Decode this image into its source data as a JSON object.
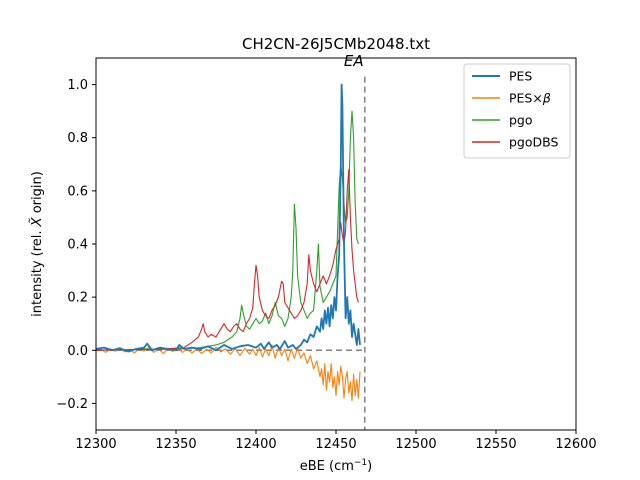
{
  "chart_data": {
    "type": "line",
    "title": "CH2CN-26J5CMb2048.txt",
    "xlabel": "eBE (cm$^{-1}$)",
    "xlabel_main": "eBE (cm",
    "xlabel_sup": "−1",
    "xlabel_close": ")",
    "ylabel_main": "intensity (rel. ",
    "ylabel_sym": "X̃",
    "ylabel_close": " origin)",
    "xlim": [
      12300,
      12600
    ],
    "ylim": [
      -0.3,
      1.1
    ],
    "xticks": [
      12300,
      12350,
      12400,
      12450,
      12500,
      12550,
      12600
    ],
    "xtick_labels": [
      "12300",
      "12350",
      "12400",
      "12450",
      "12500",
      "12550",
      "12600"
    ],
    "yticks": [
      -0.2,
      0.0,
      0.2,
      0.4,
      0.6,
      0.8,
      1.0
    ],
    "ytick_labels": [
      "−0.2",
      "0.0",
      "0.2",
      "0.4",
      "0.6",
      "0.8",
      "1.0"
    ],
    "grid": false,
    "legend_position": "top-right",
    "annotation": {
      "text": "EA",
      "x": 12468
    },
    "reference_lines": [
      {
        "type": "vertical",
        "x": 12468,
        "style": "dashed",
        "color": "#808080"
      },
      {
        "type": "horizontal",
        "y": 0.0,
        "x_range": [
          12300,
          12468
        ],
        "style": "dashed",
        "color": "#808080"
      }
    ],
    "series": [
      {
        "name": "PES",
        "color": "#1f77b4",
        "width": 1.8,
        "points": [
          [
            12300,
            0.005
          ],
          [
            12305,
            0.01
          ],
          [
            12310,
            0.0
          ],
          [
            12315,
            0.008
          ],
          [
            12320,
            -0.005
          ],
          [
            12325,
            0.005
          ],
          [
            12330,
            0.01
          ],
          [
            12332,
            0.025
          ],
          [
            12335,
            0.0
          ],
          [
            12340,
            0.01
          ],
          [
            12345,
            0.005
          ],
          [
            12350,
            0.0
          ],
          [
            12352,
            0.02
          ],
          [
            12355,
            0.005
          ],
          [
            12360,
            0.01
          ],
          [
            12365,
            0.005
          ],
          [
            12370,
            0.015
          ],
          [
            12375,
            0.0
          ],
          [
            12380,
            0.02
          ],
          [
            12385,
            0.005
          ],
          [
            12390,
            0.015
          ],
          [
            12395,
            0.02
          ],
          [
            12400,
            0.01
          ],
          [
            12403,
            0.025
          ],
          [
            12405,
            0.005
          ],
          [
            12408,
            0.03
          ],
          [
            12410,
            0.01
          ],
          [
            12413,
            0.02
          ],
          [
            12415,
            0.005
          ],
          [
            12418,
            0.035
          ],
          [
            12420,
            0.01
          ],
          [
            12423,
            0.02
          ],
          [
            12425,
            0.005
          ],
          [
            12428,
            0.02
          ],
          [
            12430,
            0.04
          ],
          [
            12432,
            0.03
          ],
          [
            12434,
            0.06
          ],
          [
            12436,
            0.05
          ],
          [
            12438,
            0.09
          ],
          [
            12440,
            0.07
          ],
          [
            12441,
            0.12
          ],
          [
            12442,
            0.08
          ],
          [
            12443,
            0.15
          ],
          [
            12444,
            0.1
          ],
          [
            12445,
            0.16
          ],
          [
            12446,
            0.09
          ],
          [
            12447,
            0.17
          ],
          [
            12448,
            0.12
          ],
          [
            12449,
            0.2
          ],
          [
            12450,
            0.15
          ],
          [
            12451,
            0.28
          ],
          [
            12452,
            0.36
          ],
          [
            12453,
            0.7
          ],
          [
            12453.5,
            1.0
          ],
          [
            12454,
            0.92
          ],
          [
            12455,
            0.4
          ],
          [
            12456,
            0.12
          ],
          [
            12457,
            0.2
          ],
          [
            12458,
            0.1
          ],
          [
            12459,
            0.15
          ],
          [
            12460,
            0.05
          ],
          [
            12461,
            0.1
          ],
          [
            12462,
            0.06
          ],
          [
            12463,
            0.02
          ],
          [
            12464,
            0.08
          ],
          [
            12465,
            0.02
          ]
        ]
      },
      {
        "name": "PES×β",
        "name_main": "PES×",
        "name_sym": "β",
        "color": "#ff7f0e",
        "width": 1.1,
        "points": [
          [
            12300,
            0.0
          ],
          [
            12303,
            0.005
          ],
          [
            12306,
            -0.008
          ],
          [
            12309,
            0.006
          ],
          [
            12312,
            -0.004
          ],
          [
            12315,
            0.008
          ],
          [
            12318,
            -0.006
          ],
          [
            12321,
            0.004
          ],
          [
            12324,
            -0.01
          ],
          [
            12327,
            0.006
          ],
          [
            12330,
            -0.003
          ],
          [
            12333,
            0.012
          ],
          [
            12336,
            -0.008
          ],
          [
            12339,
            0.005
          ],
          [
            12342,
            -0.012
          ],
          [
            12345,
            0.006
          ],
          [
            12348,
            -0.005
          ],
          [
            12351,
            0.01
          ],
          [
            12354,
            -0.008
          ],
          [
            12357,
            0.004
          ],
          [
            12360,
            -0.01
          ],
          [
            12363,
            0.006
          ],
          [
            12366,
            -0.012
          ],
          [
            12369,
            0.004
          ],
          [
            12372,
            -0.01
          ],
          [
            12375,
            0.012
          ],
          [
            12378,
            -0.006
          ],
          [
            12381,
            0.005
          ],
          [
            12384,
            -0.015
          ],
          [
            12387,
            0.006
          ],
          [
            12390,
            -0.02
          ],
          [
            12393,
            0.008
          ],
          [
            12396,
            -0.015
          ],
          [
            12398,
            0.005
          ],
          [
            12400,
            -0.02
          ],
          [
            12402,
            0.01
          ],
          [
            12404,
            -0.025
          ],
          [
            12406,
            0.005
          ],
          [
            12408,
            -0.02
          ],
          [
            12410,
            0.02
          ],
          [
            12412,
            -0.03
          ],
          [
            12414,
            0.01
          ],
          [
            12416,
            -0.02
          ],
          [
            12418,
            0.005
          ],
          [
            12420,
            -0.04
          ],
          [
            12422,
            0.005
          ],
          [
            12424,
            -0.03
          ],
          [
            12426,
            0.01
          ],
          [
            12428,
            -0.03
          ],
          [
            12430,
            -0.01
          ],
          [
            12432,
            -0.05
          ],
          [
            12434,
            -0.02
          ],
          [
            12436,
            -0.07
          ],
          [
            12438,
            -0.04
          ],
          [
            12440,
            -0.1
          ],
          [
            12441,
            -0.07
          ],
          [
            12442,
            -0.13
          ],
          [
            12443,
            -0.05
          ],
          [
            12444,
            -0.15
          ],
          [
            12445,
            -0.08
          ],
          [
            12446,
            -0.12
          ],
          [
            12447,
            -0.05
          ],
          [
            12448,
            -0.14
          ],
          [
            12449,
            -0.1
          ],
          [
            12450,
            -0.17
          ],
          [
            12451,
            -0.08
          ],
          [
            12452,
            -0.13
          ],
          [
            12453,
            -0.06
          ],
          [
            12454,
            -0.1
          ],
          [
            12455,
            -0.18
          ],
          [
            12456,
            -0.11
          ],
          [
            12457,
            -0.08
          ],
          [
            12458,
            -0.16
          ],
          [
            12459,
            -0.12
          ],
          [
            12460,
            -0.19
          ],
          [
            12461,
            -0.09
          ],
          [
            12462,
            -0.17
          ],
          [
            12463,
            -0.11
          ],
          [
            12464,
            -0.18
          ],
          [
            12465,
            -0.08
          ]
        ]
      },
      {
        "name": "pgo",
        "color": "#2ca02c",
        "width": 1.1,
        "points": [
          [
            12300,
            0.0
          ],
          [
            12310,
            0.003
          ],
          [
            12320,
            0.002
          ],
          [
            12330,
            0.005
          ],
          [
            12340,
            0.003
          ],
          [
            12350,
            0.005
          ],
          [
            12360,
            0.008
          ],
          [
            12365,
            0.01
          ],
          [
            12370,
            0.015
          ],
          [
            12375,
            0.02
          ],
          [
            12380,
            0.03
          ],
          [
            12385,
            0.05
          ],
          [
            12388,
            0.07
          ],
          [
            12390,
            0.12
          ],
          [
            12391,
            0.17
          ],
          [
            12392,
            0.14
          ],
          [
            12394,
            0.09
          ],
          [
            12396,
            0.08
          ],
          [
            12398,
            0.1
          ],
          [
            12400,
            0.12
          ],
          [
            12402,
            0.1
          ],
          [
            12404,
            0.11
          ],
          [
            12406,
            0.14
          ],
          [
            12408,
            0.1
          ],
          [
            12410,
            0.13
          ],
          [
            12412,
            0.18
          ],
          [
            12414,
            0.13
          ],
          [
            12416,
            0.12
          ],
          [
            12418,
            0.09
          ],
          [
            12420,
            0.12
          ],
          [
            12422,
            0.2
          ],
          [
            12423,
            0.3
          ],
          [
            12424,
            0.55
          ],
          [
            12425,
            0.46
          ],
          [
            12426,
            0.28
          ],
          [
            12428,
            0.18
          ],
          [
            12430,
            0.15
          ],
          [
            12432,
            0.12
          ],
          [
            12434,
            0.14
          ],
          [
            12436,
            0.15
          ],
          [
            12438,
            0.3
          ],
          [
            12439,
            0.4
          ],
          [
            12440,
            0.24
          ],
          [
            12442,
            0.18
          ],
          [
            12444,
            0.2
          ],
          [
            12446,
            0.22
          ],
          [
            12448,
            0.25
          ],
          [
            12450,
            0.28
          ],
          [
            12451,
            0.45
          ],
          [
            12452,
            0.62
          ],
          [
            12453,
            0.7
          ],
          [
            12454,
            0.65
          ],
          [
            12455,
            0.55
          ],
          [
            12456,
            0.48
          ],
          [
            12457,
            0.5
          ],
          [
            12458,
            0.6
          ],
          [
            12459,
            0.8
          ],
          [
            12460,
            0.9
          ],
          [
            12461,
            0.8
          ],
          [
            12462,
            0.55
          ],
          [
            12463,
            0.42
          ],
          [
            12464,
            0.4
          ]
        ]
      },
      {
        "name": "pgoDBS",
        "color": "#d62728",
        "width": 1.1,
        "points": [
          [
            12300,
            0.0
          ],
          [
            12310,
            0.002
          ],
          [
            12320,
            0.002
          ],
          [
            12330,
            0.003
          ],
          [
            12340,
            0.005
          ],
          [
            12350,
            0.008
          ],
          [
            12355,
            0.01
          ],
          [
            12360,
            0.03
          ],
          [
            12364,
            0.05
          ],
          [
            12366,
            0.08
          ],
          [
            12367,
            0.1
          ],
          [
            12368,
            0.07
          ],
          [
            12370,
            0.05
          ],
          [
            12372,
            0.06
          ],
          [
            12375,
            0.05
          ],
          [
            12378,
            0.08
          ],
          [
            12380,
            0.1
          ],
          [
            12382,
            0.08
          ],
          [
            12384,
            0.07
          ],
          [
            12386,
            0.09
          ],
          [
            12388,
            0.1
          ],
          [
            12390,
            0.08
          ],
          [
            12392,
            0.07
          ],
          [
            12394,
            0.1
          ],
          [
            12396,
            0.12
          ],
          [
            12398,
            0.16
          ],
          [
            12399,
            0.25
          ],
          [
            12400,
            0.32
          ],
          [
            12401,
            0.28
          ],
          [
            12402,
            0.2
          ],
          [
            12404,
            0.15
          ],
          [
            12406,
            0.13
          ],
          [
            12408,
            0.12
          ],
          [
            12410,
            0.15
          ],
          [
            12412,
            0.17
          ],
          [
            12414,
            0.2
          ],
          [
            12416,
            0.26
          ],
          [
            12417,
            0.25
          ],
          [
            12418,
            0.18
          ],
          [
            12420,
            0.16
          ],
          [
            12422,
            0.14
          ],
          [
            12424,
            0.12
          ],
          [
            12426,
            0.13
          ],
          [
            12428,
            0.15
          ],
          [
            12430,
            0.18
          ],
          [
            12432,
            0.25
          ],
          [
            12433,
            0.36
          ],
          [
            12434,
            0.3
          ],
          [
            12436,
            0.25
          ],
          [
            12438,
            0.22
          ],
          [
            12440,
            0.25
          ],
          [
            12442,
            0.28
          ],
          [
            12444,
            0.25
          ],
          [
            12446,
            0.28
          ],
          [
            12448,
            0.32
          ],
          [
            12450,
            0.38
          ],
          [
            12451,
            0.4
          ],
          [
            12452,
            0.42
          ],
          [
            12453,
            0.48
          ],
          [
            12454,
            0.43
          ],
          [
            12455,
            0.4
          ],
          [
            12456,
            0.45
          ],
          [
            12457,
            0.6
          ],
          [
            12458,
            0.68
          ],
          [
            12459,
            0.5
          ],
          [
            12460,
            0.38
          ],
          [
            12461,
            0.3
          ],
          [
            12462,
            0.25
          ],
          [
            12463,
            0.2
          ],
          [
            12464,
            0.18
          ]
        ]
      }
    ]
  }
}
